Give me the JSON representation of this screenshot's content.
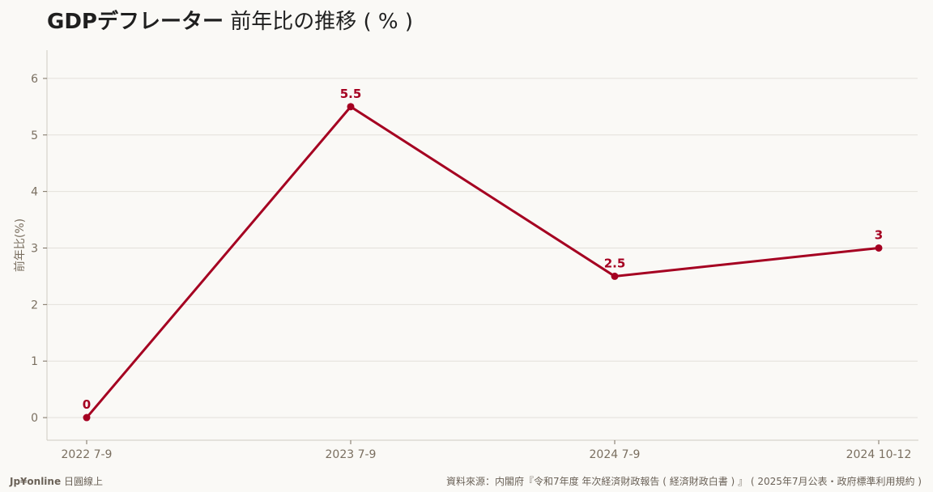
{
  "title": {
    "main": "GDPデフレーター",
    "sub": "前年比の推移 ( % )"
  },
  "footer": {
    "brand_name": "Jp¥online",
    "brand_tagline": "日圓線上",
    "source": "資料來源：内閣府『令和7年度 年次経済財政報告 ( 経済財政白書 ) 』 ( 2025年7月公表・政府標準利用規約 )"
  },
  "colors": {
    "series": "#a50021",
    "axis_text": "#7a6f60",
    "grid": "#e3e0da",
    "background": "#faf9f6"
  },
  "chart_data": {
    "type": "line",
    "title": "GDPデフレーター 前年比の推移 ( % )",
    "xlabel": "",
    "ylabel": "前年比(%)",
    "categories": [
      "2022 7-9",
      "2023 7-9",
      "2024 7-9",
      "2024 10-12"
    ],
    "series": [
      {
        "values": [
          0,
          5.5,
          2.5,
          3
        ],
        "labels": [
          "0",
          "5.5",
          "2.5",
          "3"
        ]
      }
    ],
    "yticks": [
      0,
      1,
      2,
      3,
      4,
      5,
      6
    ],
    "ylim": [
      -0.4,
      6.5
    ],
    "grid": "horizontal",
    "markers": true,
    "data_labels": true
  }
}
